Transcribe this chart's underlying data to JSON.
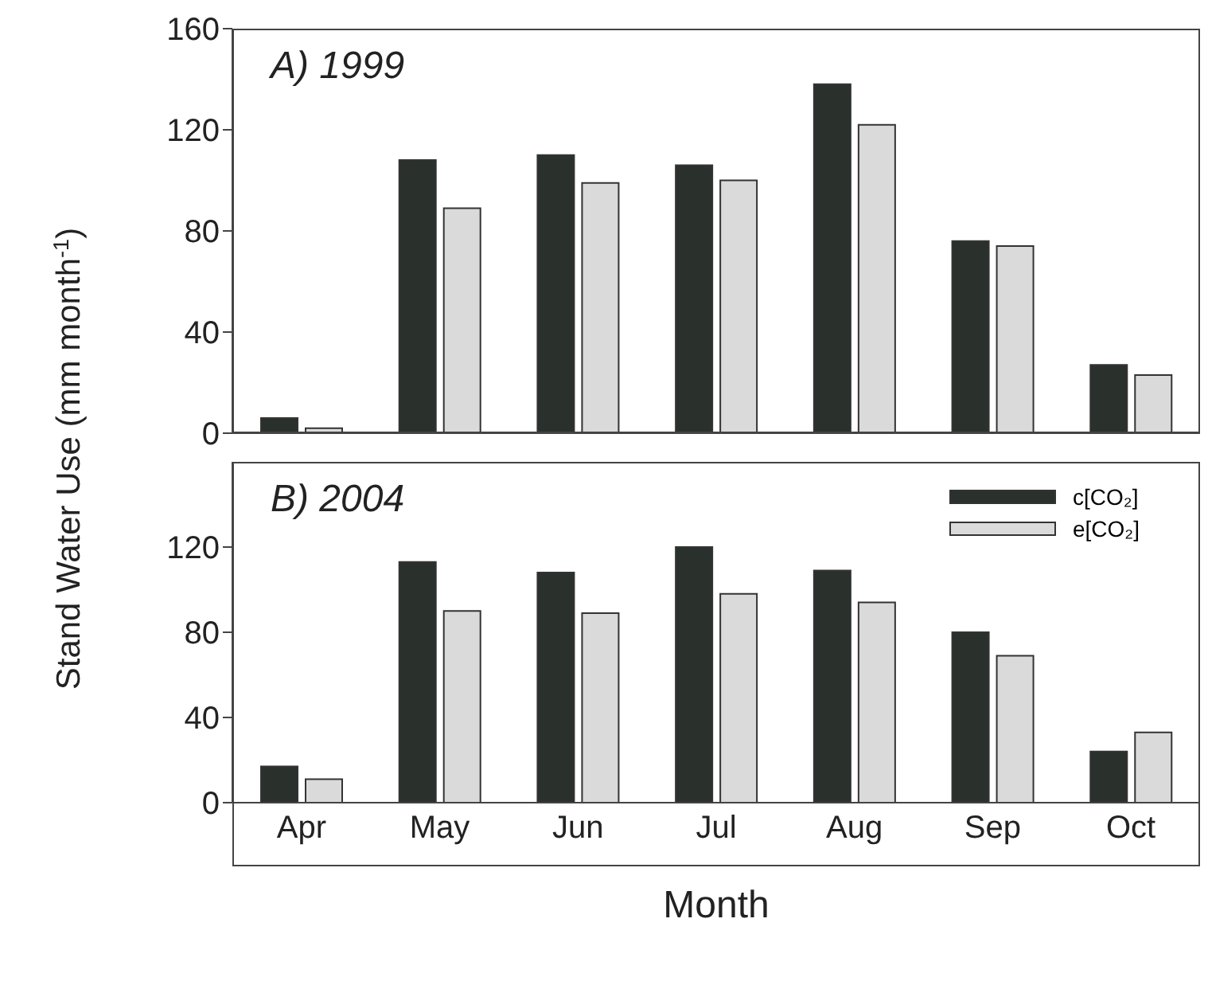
{
  "chart_data": [
    {
      "type": "bar",
      "annotations": [
        "A) 1999"
      ],
      "ylabel": "Stand Water Use (mm month$^{-1}$)",
      "categories": [
        null,
        null,
        null,
        null,
        null,
        null,
        null
      ],
      "series": [
        {
          "color": "#2a302c",
          "values": [
            6,
            108,
            110,
            106,
            138,
            76,
            27
          ]
        },
        {
          "color": "#dadada",
          "values": [
            2,
            89,
            99,
            100,
            122,
            74,
            23
          ]
        }
      ],
      "ylim": [
        0,
        160
      ],
      "yticks": [
        0,
        40,
        80,
        120,
        160
      ],
      "grid": false,
      "legend": false,
      "tick_labels": "y"
    },
    {
      "type": "bar",
      "annotations": [
        "B) 2004"
      ],
      "xlabel": "Month",
      "categories": [
        "Apr",
        "May",
        "Jun",
        "Jul",
        "Aug",
        "Sep",
        "Oct"
      ],
      "series": [
        {
          "name": "c[CO₂]",
          "color": "#2a302c",
          "values": [
            17,
            113,
            108,
            120,
            109,
            80,
            24
          ]
        },
        {
          "name": "e[CO₂]",
          "color": "#dadada",
          "values": [
            11,
            90,
            89,
            98,
            94,
            69,
            33
          ]
        }
      ],
      "ylim": [
        0,
        160
      ],
      "yticks": [
        0,
        40,
        80,
        120
      ],
      "grid": false,
      "legend": "top right"
    }
  ]
}
